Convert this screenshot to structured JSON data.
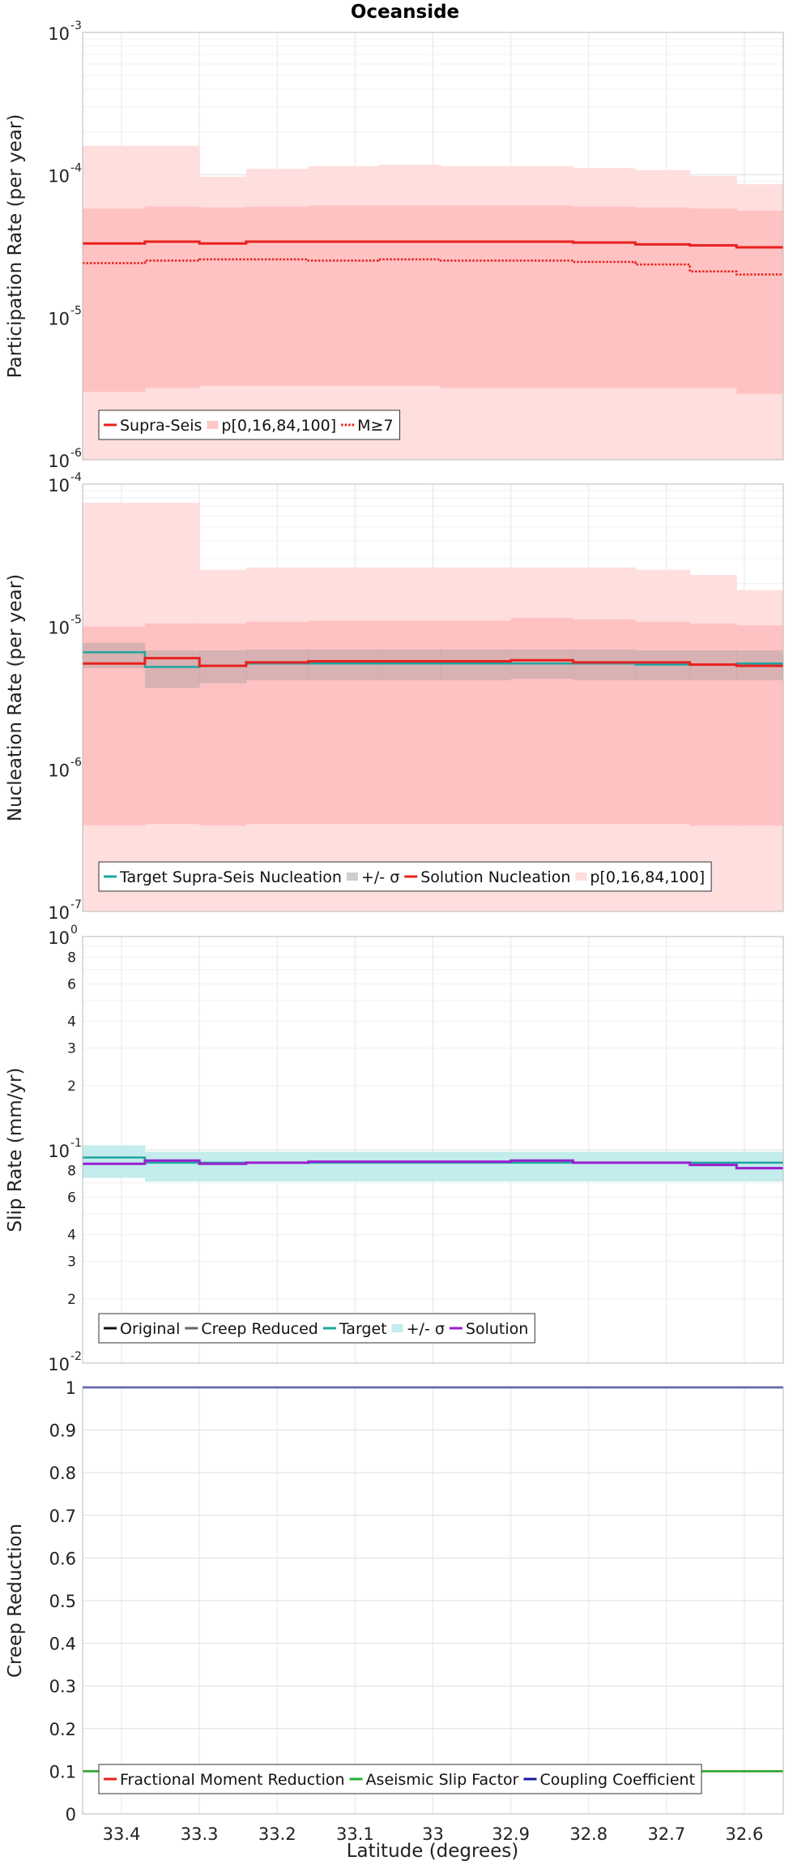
{
  "title": "Oceanside",
  "xlabel": "Latitude (degrees)",
  "x_ticks": [
    "33.4",
    "33.3",
    "33.2",
    "33.1",
    "33",
    "32.9",
    "32.8",
    "32.7",
    "32.6"
  ],
  "colors": {
    "red": "#e8201e",
    "band_light": "#ffdede",
    "band_mid": "#ffc2c2",
    "sigma_gray": "#999999",
    "teal": "#1fa5a0",
    "cyan_band": "#c3ecec",
    "purple": "#9a1fd0",
    "green": "#22b030",
    "navy": "#1a1aa0",
    "dark": "#111111",
    "gray": "#666666"
  },
  "chart_data": [
    {
      "type": "line",
      "ylabel": "Participation Rate (per year)",
      "yscale": "log",
      "xlim": [
        33.45,
        32.55
      ],
      "ylim": [
        1e-06,
        0.001
      ],
      "grid": true,
      "legend_position": "bottom-left",
      "y_ticks": [
        {
          "base": "10",
          "exp": "-6",
          "value": 1e-06
        },
        {
          "base": "10",
          "exp": "-5",
          "value": 1e-05
        },
        {
          "base": "10",
          "exp": "-4",
          "value": 0.0001
        },
        {
          "base": "10",
          "exp": "-3",
          "value": 0.001
        }
      ],
      "x_edges": [
        33.45,
        33.37,
        33.3,
        33.24,
        33.16,
        33.07,
        32.99,
        32.9,
        32.82,
        32.74,
        32.67,
        32.61,
        32.55
      ],
      "series": [
        {
          "name": "p[0,16,84,100]",
          "kind": "band",
          "lower": [
            1e-06,
            1e-06,
            1e-06,
            1e-06,
            1e-06,
            1e-06,
            1e-06,
            1e-06,
            1e-06,
            1e-06,
            1e-06,
            1e-06
          ],
          "upper": [
            0.00016,
            0.00016,
            9.7e-05,
            0.00011,
            0.000115,
            0.000118,
            0.000115,
            0.000115,
            0.000112,
            0.000108,
            9.8e-05,
            8.6e-05
          ]
        },
        {
          "name": "",
          "kind": "band",
          "lower": [
            3e-06,
            3.2e-06,
            3.3e-06,
            3.3e-06,
            3.3e-06,
            3.3e-06,
            3.2e-06,
            3.2e-06,
            3.2e-06,
            3.2e-06,
            3.2e-06,
            2.9e-06
          ],
          "upper": [
            5.8e-05,
            6e-05,
            5.9e-05,
            6e-05,
            6.1e-05,
            6.1e-05,
            6.1e-05,
            6.1e-05,
            6e-05,
            5.9e-05,
            5.8e-05,
            5.6e-05
          ]
        },
        {
          "name": "Supra-Seis",
          "kind": "step",
          "values": [
            3.3e-05,
            3.4e-05,
            3.3e-05,
            3.4e-05,
            3.4e-05,
            3.4e-05,
            3.4e-05,
            3.4e-05,
            3.35e-05,
            3.25e-05,
            3.2e-05,
            3.1e-05
          ]
        },
        {
          "name": "M≥7",
          "kind": "step-dotted",
          "values": [
            2.4e-05,
            2.5e-05,
            2.55e-05,
            2.55e-05,
            2.5e-05,
            2.55e-05,
            2.5e-05,
            2.5e-05,
            2.45e-05,
            2.35e-05,
            2.1e-05,
            2e-05
          ]
        }
      ],
      "legend": [
        {
          "label": "Supra-Seis",
          "style": "line",
          "color": "#e8201e"
        },
        {
          "label": "p[0,16,84,100]",
          "style": "swatch",
          "color": "#ffc8c8"
        },
        {
          "label": "M≥7",
          "style": "dotted",
          "color": "#e8201e"
        }
      ]
    },
    {
      "type": "line",
      "ylabel": "Nucleation Rate (per year)",
      "yscale": "log",
      "xlim": [
        33.45,
        32.55
      ],
      "ylim": [
        1e-07,
        0.0001
      ],
      "grid": true,
      "legend_position": "bottom-left",
      "y_ticks": [
        {
          "base": "10",
          "exp": "-7",
          "value": 1e-07
        },
        {
          "base": "10",
          "exp": "-6",
          "value": 1e-06
        },
        {
          "base": "10",
          "exp": "-5",
          "value": 1e-05
        },
        {
          "base": "10",
          "exp": "-4",
          "value": 0.0001
        }
      ],
      "x_edges": [
        33.45,
        33.37,
        33.3,
        33.24,
        33.16,
        33.07,
        32.99,
        32.9,
        32.82,
        32.74,
        32.67,
        32.61,
        32.55
      ],
      "series": [
        {
          "name": "p[0,16,84,100]",
          "kind": "band",
          "lower": [
            1e-07,
            1e-07,
            1e-07,
            1e-07,
            1e-07,
            1e-07,
            1e-07,
            1e-07,
            1e-07,
            1e-07,
            1e-07,
            1e-07
          ],
          "upper": [
            7.4e-05,
            7.4e-05,
            2.5e-05,
            2.6e-05,
            2.6e-05,
            2.6e-05,
            2.6e-05,
            2.6e-05,
            2.6e-05,
            2.5e-05,
            2.3e-05,
            1.8e-05
          ]
        },
        {
          "name": "",
          "kind": "band",
          "lower": [
            4e-07,
            4.1e-07,
            4e-07,
            4.1e-07,
            4.1e-07,
            4.1e-07,
            4.1e-07,
            4.1e-07,
            4.1e-07,
            4.1e-07,
            4e-07,
            4e-07
          ],
          "upper": [
            1e-05,
            1.05e-05,
            1.05e-05,
            1.08e-05,
            1.1e-05,
            1.1e-05,
            1.1e-05,
            1.15e-05,
            1.12e-05,
            1.08e-05,
            1.05e-05,
            1.02e-05
          ]
        },
        {
          "name": "+/- σ",
          "kind": "sigma",
          "lower": [
            5.1e-06,
            3.7e-06,
            4e-06,
            4.2e-06,
            4.2e-06,
            4.2e-06,
            4.2e-06,
            4.3e-06,
            4.2e-06,
            4.2e-06,
            4.2e-06,
            4.2e-06
          ],
          "upper": [
            7.7e-06,
            6.8e-06,
            6.8e-06,
            6.9e-06,
            6.9e-06,
            6.9e-06,
            6.9e-06,
            6.9e-06,
            6.9e-06,
            6.8e-06,
            6.8e-06,
            6.8e-06
          ]
        },
        {
          "name": "Target Supra-Seis Nucleation",
          "kind": "step-teal",
          "values": [
            6.6e-06,
            5.2e-06,
            5.3e-06,
            5.5e-06,
            5.5e-06,
            5.5e-06,
            5.5e-06,
            5.5e-06,
            5.5e-06,
            5.4e-06,
            5.4e-06,
            5.5e-06
          ]
        },
        {
          "name": "Solution Nucleation",
          "kind": "step",
          "values": [
            5.5e-06,
            6e-06,
            5.3e-06,
            5.6e-06,
            5.7e-06,
            5.7e-06,
            5.7e-06,
            5.8e-06,
            5.6e-06,
            5.6e-06,
            5.4e-06,
            5.3e-06
          ]
        }
      ],
      "legend": [
        {
          "label": "Target Supra-Seis Nucleation",
          "style": "line",
          "color": "#1fa5a0"
        },
        {
          "label": "+/- σ",
          "style": "swatch",
          "color": "#cfcfcf"
        },
        {
          "label": "Solution Nucleation",
          "style": "line",
          "color": "#e8201e"
        },
        {
          "label": "p[0,16,84,100]",
          "style": "swatch",
          "color": "#ffdede"
        }
      ]
    },
    {
      "type": "line",
      "ylabel": "Slip Rate (mm/yr)",
      "yscale": "log",
      "xlim": [
        33.45,
        32.55
      ],
      "ylim": [
        0.01,
        1
      ],
      "grid": true,
      "legend_position": "bottom-left",
      "y_ticks": [
        {
          "base": "10",
          "exp": "-2",
          "value": 0.01
        },
        {
          "base": "10",
          "exp": "-1",
          "value": 0.1
        },
        {
          "base": "10",
          "exp": "0",
          "value": 1
        }
      ],
      "y_minor_ticks": [
        {
          "label": "2",
          "value": 0.02
        },
        {
          "label": "3",
          "value": 0.03
        },
        {
          "label": "4",
          "value": 0.04
        },
        {
          "label": "6",
          "value": 0.06
        },
        {
          "label": "8",
          "value": 0.08
        },
        {
          "label": "2",
          "value": 0.2
        },
        {
          "label": "3",
          "value": 0.3
        },
        {
          "label": "4",
          "value": 0.4
        },
        {
          "label": "6",
          "value": 0.6
        },
        {
          "label": "8",
          "value": 0.8
        }
      ],
      "x_edges": [
        33.45,
        33.37,
        33.3,
        33.24,
        33.16,
        33.07,
        32.99,
        32.9,
        32.82,
        32.74,
        32.67,
        32.61,
        32.55
      ],
      "series": [
        {
          "name": "+/- σ",
          "kind": "cyan-band",
          "lower": [
            0.074,
            0.071,
            0.071,
            0.071,
            0.071,
            0.071,
            0.071,
            0.071,
            0.071,
            0.071,
            0.071,
            0.071
          ],
          "upper": [
            0.105,
            0.098,
            0.098,
            0.098,
            0.098,
            0.098,
            0.098,
            0.098,
            0.098,
            0.098,
            0.098,
            0.098
          ]
        },
        {
          "name": "Target",
          "kind": "step-teal",
          "values": [
            0.092,
            0.087,
            0.087,
            0.087,
            0.087,
            0.087,
            0.087,
            0.087,
            0.087,
            0.087,
            0.087,
            0.087
          ]
        },
        {
          "name": "Solution",
          "kind": "step-purple",
          "values": [
            0.086,
            0.089,
            0.086,
            0.087,
            0.088,
            0.088,
            0.088,
            0.089,
            0.087,
            0.087,
            0.085,
            0.082
          ]
        }
      ],
      "legend": [
        {
          "label": "Original",
          "style": "line",
          "color": "#111111"
        },
        {
          "label": "Creep Reduced",
          "style": "line",
          "color": "#666666"
        },
        {
          "label": "Target",
          "style": "line",
          "color": "#1fa5a0"
        },
        {
          "label": "+/- σ",
          "style": "swatch",
          "color": "#c3ecec"
        },
        {
          "label": "Solution",
          "style": "line",
          "color": "#9a1fd0"
        }
      ]
    },
    {
      "type": "line",
      "ylabel": "Creep Reduction",
      "yscale": "linear",
      "xlim": [
        33.45,
        32.55
      ],
      "ylim": [
        0,
        1
      ],
      "grid": true,
      "legend_position": "bottom-left",
      "y_ticks": [
        {
          "label": "0",
          "value": 0
        },
        {
          "label": "0.1",
          "value": 0.1
        },
        {
          "label": "0.2",
          "value": 0.2
        },
        {
          "label": "0.3",
          "value": 0.3
        },
        {
          "label": "0.4",
          "value": 0.4
        },
        {
          "label": "0.5",
          "value": 0.5
        },
        {
          "label": "0.6",
          "value": 0.6
        },
        {
          "label": "0.7",
          "value": 0.7
        },
        {
          "label": "0.8",
          "value": 0.8
        },
        {
          "label": "0.9",
          "value": 0.9
        },
        {
          "label": "1",
          "value": 1
        }
      ],
      "series": [
        {
          "name": "Fractional Moment Reduction",
          "kind": "hline",
          "value": 0.1,
          "color": "#e8201e"
        },
        {
          "name": "Aseismic Slip Factor",
          "kind": "hline",
          "value": 0.1,
          "color": "#22b030"
        },
        {
          "name": "Coupling Coefficient",
          "kind": "hline",
          "value": 1,
          "color": "#1a1aa0"
        }
      ],
      "legend": [
        {
          "label": "Fractional Moment Reduction",
          "style": "line",
          "color": "#e8201e"
        },
        {
          "label": "Aseismic Slip Factor",
          "style": "line",
          "color": "#22b030"
        },
        {
          "label": "Coupling Coefficient",
          "style": "line",
          "color": "#1a1aa0"
        }
      ]
    }
  ]
}
